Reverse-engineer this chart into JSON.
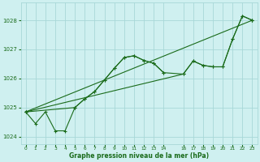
{
  "bg_color": "#cff0f0",
  "grid_color": "#a8d8d8",
  "line_color": "#1a6b1a",
  "xlabel": "Graphe pression niveau de la mer (hPa)",
  "xlim": [
    -0.5,
    23.5
  ],
  "ylim": [
    1023.75,
    1028.6
  ],
  "yticks": [
    1024,
    1025,
    1026,
    1027,
    1028
  ],
  "ytick_labels": [
    "1024",
    "1025",
    "1026",
    "1027",
    "1028"
  ],
  "xticks": [
    0,
    1,
    2,
    3,
    4,
    5,
    6,
    7,
    8,
    9,
    10,
    11,
    12,
    13,
    14,
    16,
    17,
    18,
    19,
    20,
    21,
    22,
    23
  ],
  "xtick_labels": [
    "0",
    "1",
    "2",
    "3",
    "4",
    "5",
    "6",
    "7",
    "8",
    "9",
    "10",
    "11",
    "12",
    "13",
    "14",
    "16",
    "17",
    "18",
    "19",
    "20",
    "21",
    "22",
    "23"
  ],
  "series1_x": [
    0,
    1,
    2,
    3,
    4,
    5,
    6,
    7,
    8,
    9,
    10,
    11,
    12,
    13,
    14
  ],
  "series1_y": [
    1024.85,
    1024.45,
    1024.85,
    1024.2,
    1024.2,
    1025.0,
    1025.3,
    1025.55,
    1025.95,
    1026.35,
    1026.72,
    1026.78,
    1026.62,
    1026.52,
    1026.2
  ],
  "series2_x": [
    0,
    23
  ],
  "series2_y": [
    1024.85,
    1028.0
  ],
  "series3_x": [
    0,
    5,
    6,
    7,
    8,
    9,
    10,
    11,
    12,
    13,
    14,
    16,
    17,
    18,
    19,
    20,
    21,
    22,
    23
  ],
  "series3_y": [
    1024.85,
    1025.0,
    1025.3,
    1025.55,
    1025.95,
    1026.35,
    1026.72,
    1026.78,
    1026.62,
    1026.52,
    1026.2,
    1026.15,
    1026.6,
    1026.45,
    1026.4,
    1026.4,
    1027.35,
    1028.15,
    1028.0
  ],
  "series4_x": [
    0,
    16,
    17,
    18,
    19,
    20,
    21,
    22,
    23
  ],
  "series4_y": [
    1024.85,
    1026.15,
    1026.6,
    1026.45,
    1026.4,
    1026.4,
    1027.35,
    1028.15,
    1028.0
  ],
  "series5_x": [
    0,
    23
  ],
  "series5_y": [
    1024.85,
    1028.05
  ]
}
